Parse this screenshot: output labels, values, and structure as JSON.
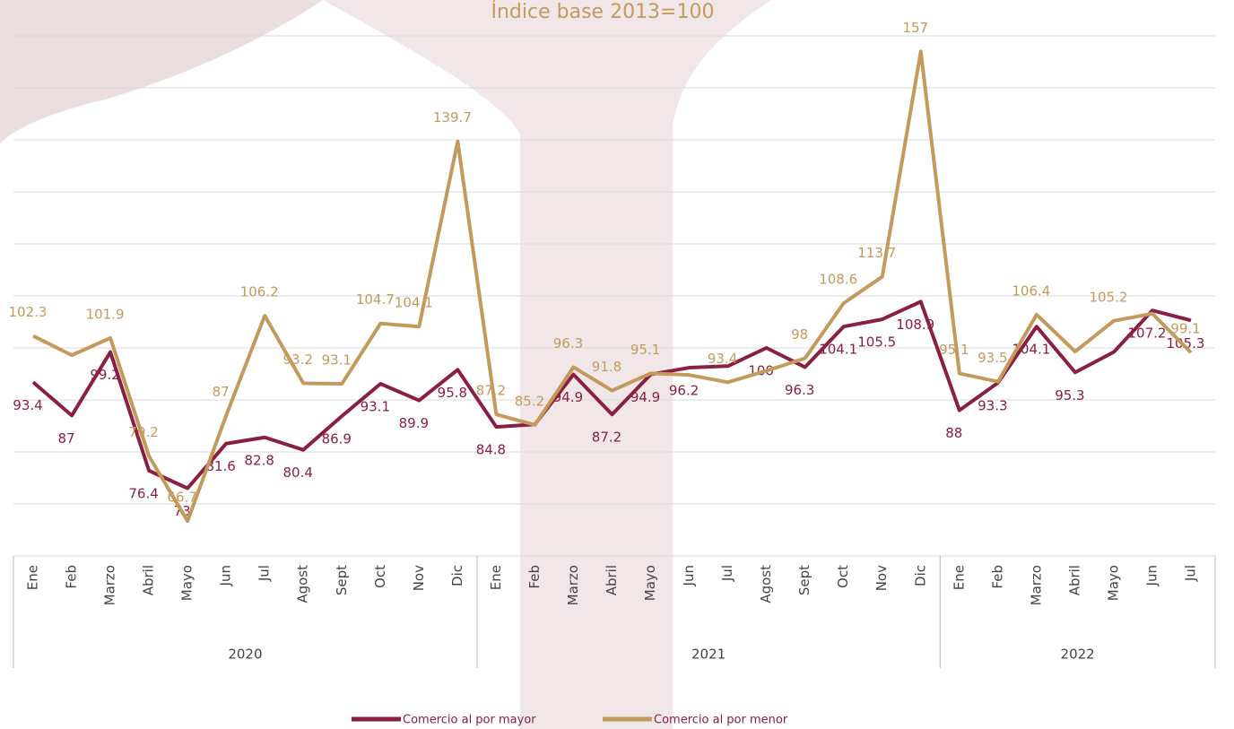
{
  "chart_data": {
    "type": "line",
    "title": "Índice base 2013=100",
    "categories": [
      "Ene",
      "Feb",
      "Marzo",
      "Abril",
      "Mayo",
      "Jun",
      "Jul",
      "Agost",
      "Sept",
      "Oct",
      "Nov",
      "Dic",
      "Ene",
      "Feb",
      "Marzo",
      "Abril",
      "Mayo",
      "Jun",
      "Jul",
      "Agost",
      "Sept",
      "Oct",
      "Nov",
      "Dic",
      "Ene",
      "Feb",
      "Marzo",
      "Abril",
      "Mayo",
      "Jun",
      "Jul"
    ],
    "groups": [
      "2020",
      "2021",
      "2022"
    ],
    "series": [
      {
        "name": "Comercio al por mayor",
        "color": "#8b1f41",
        "values": [
          93.4,
          87,
          99.2,
          76.4,
          73,
          81.6,
          82.8,
          80.4,
          86.9,
          93.1,
          89.9,
          95.8,
          84.8,
          85.3,
          94.9,
          87.2,
          94.9,
          96.2,
          96.5,
          100,
          96.3,
          104.1,
          105.5,
          108.9,
          88,
          93.3,
          104.1,
          95.3,
          99.2,
          107.2,
          105.3
        ],
        "value_labels": [
          "93.4",
          "87",
          "99.2",
          "76.4",
          "73",
          "81.6",
          "82.8",
          "80.4",
          "86.9",
          "93.1",
          "89.9",
          "95.8",
          "84.8",
          null,
          "94.9",
          "87.2",
          "94.9",
          "96.2",
          null,
          "100",
          "96.3",
          "104.1",
          "105.5",
          "108.9",
          "88",
          "93.3",
          "104.1",
          "95.3",
          null,
          "107.2",
          "105.3"
        ]
      },
      {
        "name": "Comercio al por menor",
        "color": "#c49a5c",
        "values": [
          102.3,
          98.6,
          101.9,
          79.2,
          66.7,
          87,
          106.2,
          93.2,
          93.1,
          104.7,
          104.1,
          139.7,
          87.2,
          85.2,
          96.3,
          91.8,
          95.1,
          94.8,
          93.4,
          95.6,
          98,
          108.6,
          113.7,
          157,
          95.1,
          93.5,
          106.4,
          99.3,
          105.2,
          106.6,
          99.1
        ],
        "value_labels": [
          "102.3",
          null,
          "101.9",
          "79.2",
          "66.7",
          "87",
          "106.2",
          "93.2",
          "93.1",
          "104.7",
          "104.1",
          "139.7",
          "87.2",
          "85.2",
          "96.3",
          "91.8",
          "95.1",
          null,
          "93.4",
          null,
          "98",
          "108.6",
          "113.7",
          "157",
          "95.1",
          "93.5",
          "106.4",
          null,
          "105.2",
          null,
          "99.1"
        ]
      }
    ],
    "ylim": [
      60,
      160
    ],
    "yticks": [
      60,
      70,
      80,
      90,
      100,
      110,
      120,
      130,
      140,
      150,
      160
    ],
    "grid": true
  }
}
